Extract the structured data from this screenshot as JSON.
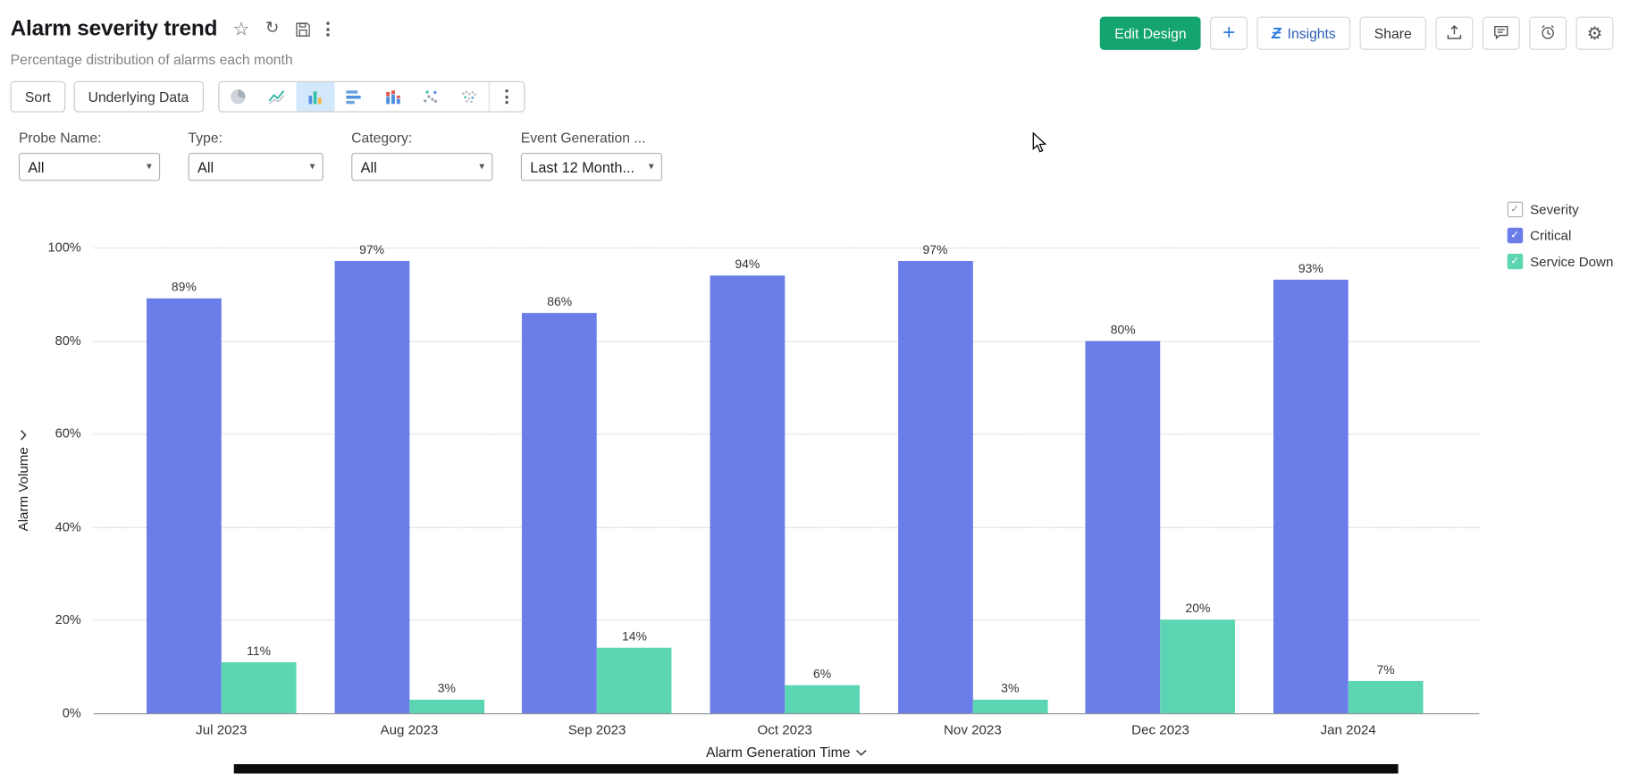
{
  "header": {
    "title": "Alarm severity trend",
    "subtitle": "Percentage distribution of alarms each month",
    "actions": {
      "edit_design": "Edit Design",
      "insights": "Insights",
      "share": "Share"
    }
  },
  "toolbar": {
    "sort": "Sort",
    "underlying_data": "Underlying Data",
    "selected_chart_type": "column"
  },
  "filters": [
    {
      "label": "Probe Name:",
      "value": "All"
    },
    {
      "label": "Type:",
      "value": "All"
    },
    {
      "label": "Category:",
      "value": "All"
    },
    {
      "label": "Event Generation ...",
      "value": "Last 12 Month..."
    }
  ],
  "legend": {
    "title": "Severity",
    "items": [
      {
        "label": "Critical",
        "color": "#6a7de9"
      },
      {
        "label": "Service Down",
        "color": "#5cd6b2"
      }
    ]
  },
  "chart_data": {
    "type": "bar",
    "title": "Alarm severity trend",
    "categories": [
      "Jul 2023",
      "Aug 2023",
      "Sep 2023",
      "Oct 2023",
      "Nov 2023",
      "Dec 2023",
      "Jan 2024"
    ],
    "series": [
      {
        "name": "Critical",
        "color": "#6a7de9",
        "values": [
          89,
          97,
          86,
          94,
          97,
          80,
          93
        ]
      },
      {
        "name": "Service Down",
        "color": "#5cd6b2",
        "values": [
          11,
          3,
          14,
          6,
          3,
          20,
          7
        ]
      }
    ],
    "value_suffix": "%",
    "xlabel": "Alarm Generation Time",
    "ylabel": "Alarm Volume",
    "yticks": [
      "100%",
      "80%",
      "60%",
      "40%",
      "20%",
      "0%"
    ],
    "ylim": [
      0,
      100
    ],
    "grid": "dotted horizontal",
    "legend_position": "top-right"
  },
  "colors": {
    "edit_design_bg": "#14a46f",
    "accent_blue": "#2f7de1",
    "critical": "#6a7de9",
    "service_down": "#5cd6b2"
  },
  "icons": {
    "star": "☆",
    "refresh": "↻",
    "gear": "⚙",
    "plus": "+",
    "zia": "Ƶ",
    "dropdown_arrow": "▾",
    "checkmark": "✓"
  }
}
